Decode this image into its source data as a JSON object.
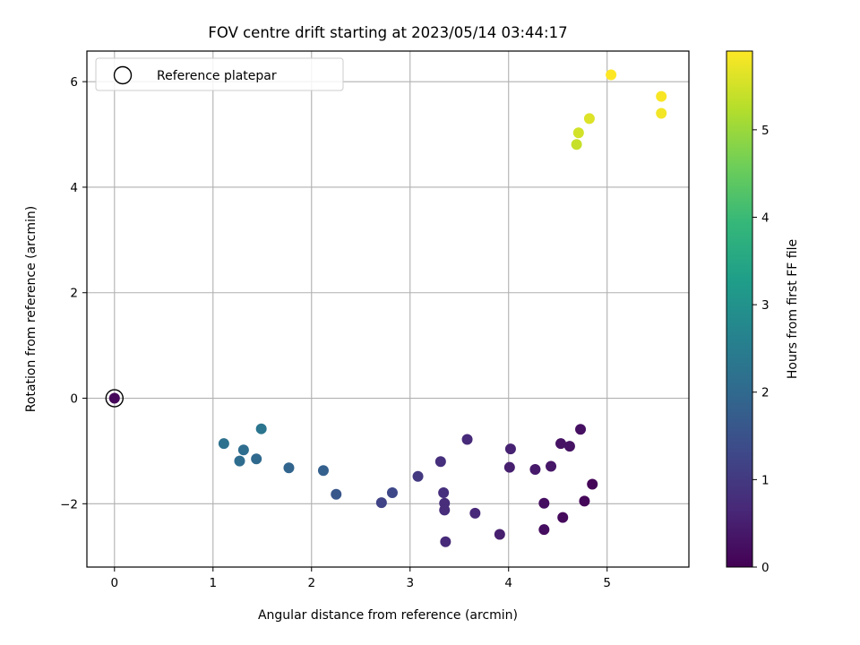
{
  "chart_data": {
    "type": "scatter",
    "title": "FOV centre drift starting at 2023/05/14 03:44:17",
    "xlabel": "Angular distance from reference (arcmin)",
    "ylabel": "Rotation from reference (arcmin)",
    "xlim": [
      -0.28,
      5.83
    ],
    "ylim": [
      -3.2,
      6.58
    ],
    "x_ticks": [
      0,
      1,
      2,
      3,
      4,
      5
    ],
    "y_ticks": [
      -2,
      0,
      2,
      4,
      6
    ],
    "x_tick_labels": [
      "0",
      "1",
      "2",
      "3",
      "4",
      "5"
    ],
    "y_tick_labels": [
      "−2",
      "0",
      "2",
      "4",
      "6"
    ],
    "grid": true,
    "legend": {
      "location": "upper-left",
      "entries": [
        "Reference platepar"
      ]
    },
    "reference_point": {
      "x": 0,
      "y": 0,
      "hours": 0.1
    },
    "colorbar": {
      "label": "Hours from first FF file",
      "min": 0,
      "max": 5.9,
      "ticks": [
        0,
        1,
        2,
        3,
        4,
        5
      ],
      "tick_labels": [
        "0",
        "1",
        "2",
        "3",
        "4",
        "5"
      ],
      "colormap": [
        "#440154",
        "#482878",
        "#3e4989",
        "#31688e",
        "#26828e",
        "#1f9e89",
        "#35b779",
        "#6ece58",
        "#b5de2b",
        "#fde725"
      ]
    },
    "points": [
      {
        "x": 5.04,
        "y": 6.13,
        "hours": 5.9
      },
      {
        "x": 5.55,
        "y": 5.72,
        "hours": 5.85
      },
      {
        "x": 5.55,
        "y": 5.4,
        "hours": 5.8
      },
      {
        "x": 4.82,
        "y": 5.3,
        "hours": 5.6
      },
      {
        "x": 4.71,
        "y": 5.03,
        "hours": 5.5
      },
      {
        "x": 4.69,
        "y": 4.81,
        "hours": 5.4
      },
      {
        "x": 1.49,
        "y": -0.58,
        "hours": 2.3
      },
      {
        "x": 1.11,
        "y": -0.86,
        "hours": 2.2
      },
      {
        "x": 1.31,
        "y": -0.98,
        "hours": 2.1
      },
      {
        "x": 1.27,
        "y": -1.19,
        "hours": 2.1
      },
      {
        "x": 1.44,
        "y": -1.15,
        "hours": 2.0
      },
      {
        "x": 1.77,
        "y": -1.32,
        "hours": 1.9
      },
      {
        "x": 2.12,
        "y": -1.37,
        "hours": 1.8
      },
      {
        "x": 2.25,
        "y": -1.82,
        "hours": 1.6
      },
      {
        "x": 2.82,
        "y": -1.79,
        "hours": 1.3
      },
      {
        "x": 2.71,
        "y": -1.98,
        "hours": 1.2
      },
      {
        "x": 3.08,
        "y": -1.48,
        "hours": 1.0
      },
      {
        "x": 3.31,
        "y": -1.2,
        "hours": 0.8
      },
      {
        "x": 3.34,
        "y": -1.79,
        "hours": 0.8
      },
      {
        "x": 3.35,
        "y": -1.99,
        "hours": 0.75
      },
      {
        "x": 3.35,
        "y": -2.12,
        "hours": 0.75
      },
      {
        "x": 3.36,
        "y": -2.72,
        "hours": 0.7
      },
      {
        "x": 3.58,
        "y": -0.78,
        "hours": 0.7
      },
      {
        "x": 3.66,
        "y": -2.18,
        "hours": 0.65
      },
      {
        "x": 3.91,
        "y": -2.58,
        "hours": 0.5
      },
      {
        "x": 4.02,
        "y": -0.96,
        "hours": 0.55
      },
      {
        "x": 4.01,
        "y": -1.31,
        "hours": 0.5
      },
      {
        "x": 4.27,
        "y": -1.35,
        "hours": 0.4
      },
      {
        "x": 4.43,
        "y": -1.29,
        "hours": 0.35
      },
      {
        "x": 4.53,
        "y": -0.86,
        "hours": 0.3
      },
      {
        "x": 4.62,
        "y": -0.91,
        "hours": 0.3
      },
      {
        "x": 4.73,
        "y": -0.59,
        "hours": 0.25
      },
      {
        "x": 4.36,
        "y": -1.99,
        "hours": 0.2
      },
      {
        "x": 4.36,
        "y": -2.49,
        "hours": 0.2
      },
      {
        "x": 4.55,
        "y": -2.26,
        "hours": 0.15
      },
      {
        "x": 4.77,
        "y": -1.95,
        "hours": 0.1
      },
      {
        "x": 4.85,
        "y": -1.63,
        "hours": 0.05
      }
    ]
  }
}
